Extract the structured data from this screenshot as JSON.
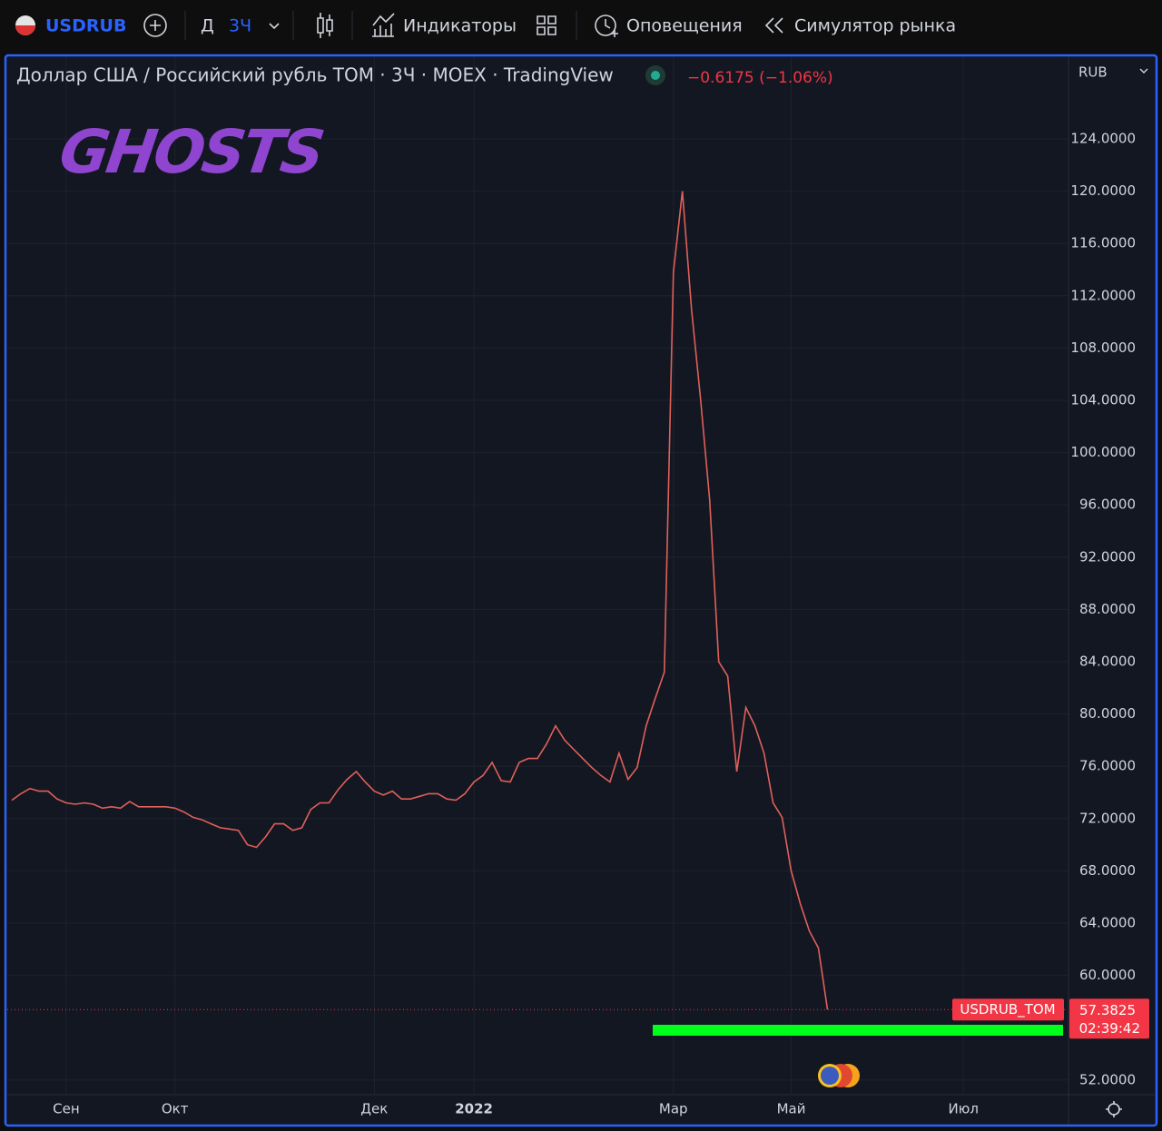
{
  "toolbar": {
    "symbol": "USDRUB",
    "interval_prefix": "Д",
    "interval": "3Ч",
    "indicators": "Индикаторы",
    "alerts": "Оповещения",
    "replay": "Симулятор рынка"
  },
  "chart_data": {
    "type": "line",
    "title": "Доллар США / Российский рубль TOM · 3Ч · MOEX · TradingView",
    "change": "−0.6175 (−1.06%)",
    "currency": "RUB",
    "watermark": "GHOSTS",
    "countdown": "02:39:42",
    "categories": [
      null,
      null,
      null,
      null,
      null,
      null,
      "Сен",
      null,
      null,
      null,
      null,
      null,
      null,
      null,
      null,
      null,
      null,
      null,
      "Окт",
      null,
      null,
      null,
      null,
      null,
      null,
      null,
      null,
      null,
      null,
      null,
      null,
      null,
      null,
      null,
      null,
      null,
      null,
      null,
      null,
      null,
      "Дек",
      null,
      null,
      null,
      null,
      null,
      null,
      null,
      null,
      null,
      null,
      "2022",
      null,
      null,
      null,
      null,
      null,
      null,
      null,
      null,
      null,
      null,
      null,
      null,
      null,
      null,
      null,
      null,
      null,
      null,
      null,
      null,
      null,
      "Мар",
      null,
      null,
      null,
      null,
      null,
      null,
      null,
      null,
      null,
      null,
      null,
      null,
      "Май",
      null,
      null,
      null,
      null,
      null,
      null,
      null,
      null,
      null,
      null,
      null,
      null,
      null,
      null,
      null,
      null,
      null,
      null,
      "Июл",
      null,
      null,
      null,
      null,
      null,
      null,
      null,
      null,
      null,
      null,
      null
    ],
    "series": [
      {
        "name": "USDRUB_TOM",
        "color": "#e0605a",
        "values": [
          73.4,
          73.9,
          74.3,
          74.1,
          74.1,
          73.5,
          73.2,
          73.1,
          73.2,
          73.1,
          72.8,
          72.9,
          72.8,
          73.3,
          72.9,
          72.9,
          72.9,
          72.9,
          72.8,
          72.5,
          72.1,
          71.9,
          71.6,
          71.3,
          71.2,
          71.1,
          70.0,
          69.8,
          70.6,
          71.6,
          71.6,
          71.1,
          71.3,
          72.7,
          73.2,
          73.2,
          74.2,
          75.0,
          75.6,
          74.8,
          74.1,
          73.8,
          74.1,
          73.5,
          73.5,
          73.7,
          73.9,
          73.9,
          73.5,
          73.4,
          73.9,
          74.8,
          75.3,
          76.3,
          74.9,
          74.8,
          76.3,
          76.6,
          76.6,
          77.7,
          79.1,
          78.0,
          77.3,
          76.6,
          75.9,
          75.3,
          74.8,
          77.0,
          75.0,
          75.9,
          79.1,
          81.2,
          83.2,
          113.8,
          120.0,
          111.0,
          104.1,
          96.4,
          84.0,
          82.9,
          75.6,
          80.5,
          79.1,
          77.0,
          73.2,
          72.1,
          68.0,
          65.5,
          63.4,
          62.1,
          57.3825,
          null,
          null,
          null,
          null,
          null,
          null,
          null,
          null,
          null,
          null,
          null,
          null,
          null,
          null,
          null,
          null,
          null,
          null,
          null,
          null,
          null,
          null,
          null,
          null,
          null,
          null
        ]
      }
    ],
    "ylim": [
      51,
      128
    ],
    "yticks": [
      {
        "value": 52,
        "label": "52.0000"
      },
      {
        "value": 60,
        "label": "60.0000"
      },
      {
        "value": 64,
        "label": "64.0000"
      },
      {
        "value": 68,
        "label": "68.0000"
      },
      {
        "value": 72,
        "label": "72.0000"
      },
      {
        "value": 76,
        "label": "76.0000"
      },
      {
        "value": 80,
        "label": "80.0000"
      },
      {
        "value": 84,
        "label": "84.0000"
      },
      {
        "value": 88,
        "label": "88.0000"
      },
      {
        "value": 92,
        "label": "92.0000"
      },
      {
        "value": 96,
        "label": "96.0000"
      },
      {
        "value": 100,
        "label": "100.0000"
      },
      {
        "value": 104,
        "label": "104.0000"
      },
      {
        "value": 108,
        "label": "108.0000"
      },
      {
        "value": 112,
        "label": "112.0000"
      },
      {
        "value": 116,
        "label": "116.0000"
      },
      {
        "value": 120,
        "label": "120.0000"
      },
      {
        "value": 124,
        "label": "124.0000"
      }
    ],
    "grid": true
  }
}
